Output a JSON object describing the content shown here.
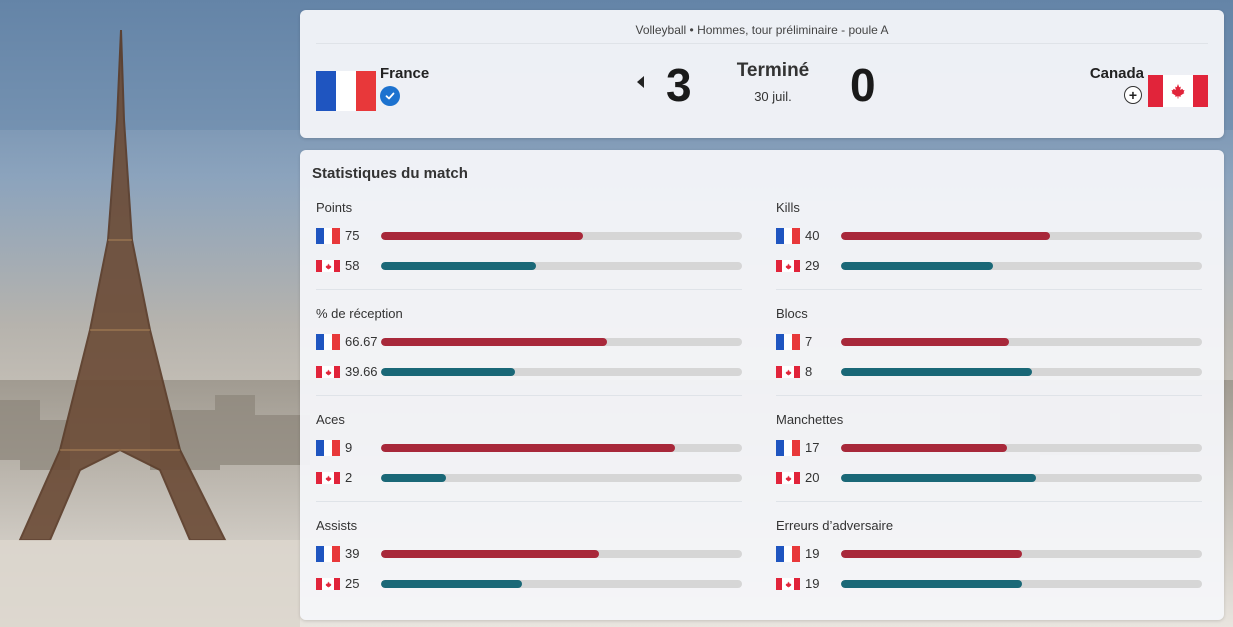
{
  "match": {
    "event": "Volleyball • Hommes, tour préliminaire - poule A",
    "status": "Terminé",
    "date": "30 juil.",
    "home": {
      "name": "France",
      "score": "3",
      "flag_icon": "flag-france-icon"
    },
    "away": {
      "name": "Canada",
      "score": "0",
      "flag_icon": "flag-canada-icon"
    },
    "winner": "home"
  },
  "colors": {
    "france_bar": "#a8283a",
    "canada_bar": "#1a6877",
    "track": "#d6d6d6"
  },
  "stats": {
    "title": "Statistiques du match",
    "items": [
      {
        "label": "Points",
        "home": "75",
        "away": "58",
        "home_fill": 0.56,
        "away_fill": 0.43
      },
      {
        "label": "Kills",
        "home": "40",
        "away": "29",
        "home_fill": 0.58,
        "away_fill": 0.42
      },
      {
        "label": "% de réception",
        "home": "66.67",
        "away": "39.66",
        "home_fill": 0.625,
        "away_fill": 0.37
      },
      {
        "label": "Blocs",
        "home": "7",
        "away": "8",
        "home_fill": 0.465,
        "away_fill": 0.53
      },
      {
        "label": "Aces",
        "home": "9",
        "away": "2",
        "home_fill": 0.815,
        "away_fill": 0.18
      },
      {
        "label": "Manchettes",
        "home": "17",
        "away": "20",
        "home_fill": 0.46,
        "away_fill": 0.54
      },
      {
        "label": "Assists",
        "home": "39",
        "away": "25",
        "home_fill": 0.605,
        "away_fill": 0.39
      },
      {
        "label": "Erreurs d’adversaire",
        "home": "19",
        "away": "19",
        "home_fill": 0.5,
        "away_fill": 0.5
      }
    ]
  }
}
